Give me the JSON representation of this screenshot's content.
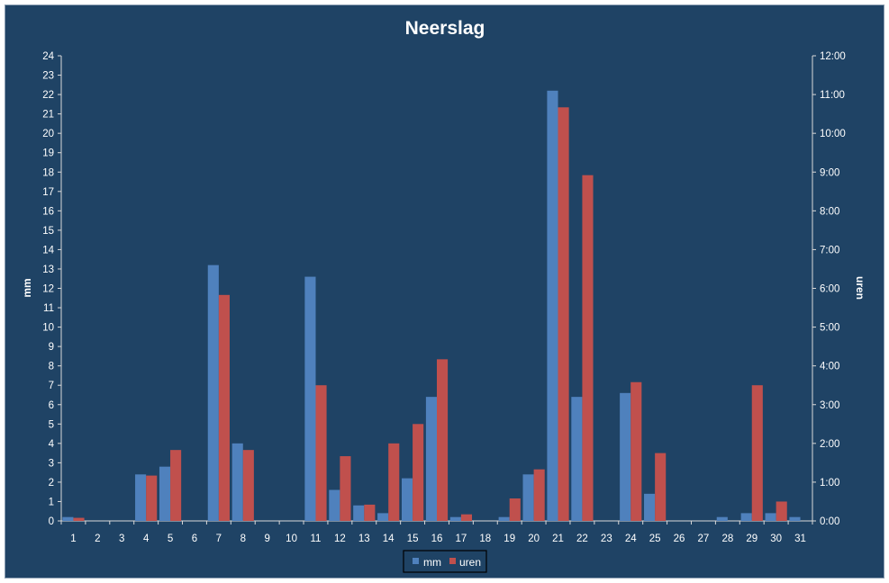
{
  "chart_data": {
    "type": "bar",
    "title": "Neerslag",
    "xlabel": "",
    "ylabel": "mm",
    "y2label": "uren",
    "categories": [
      "1",
      "2",
      "3",
      "4",
      "5",
      "6",
      "7",
      "8",
      "9",
      "10",
      "11",
      "12",
      "13",
      "14",
      "15",
      "16",
      "17",
      "18",
      "19",
      "20",
      "21",
      "22",
      "23",
      "24",
      "25",
      "26",
      "27",
      "28",
      "29",
      "30",
      "31"
    ],
    "ylim": [
      0,
      24
    ],
    "y2lim_hours": [
      0,
      12
    ],
    "yticks": [
      "0",
      "1",
      "2",
      "3",
      "4",
      "5",
      "6",
      "7",
      "8",
      "9",
      "10",
      "11",
      "12",
      "13",
      "14",
      "15",
      "16",
      "17",
      "18",
      "19",
      "20",
      "21",
      "22",
      "23",
      "24"
    ],
    "y2ticks": [
      "0:00",
      "1:00",
      "2:00",
      "3:00",
      "4:00",
      "5:00",
      "6:00",
      "7:00",
      "8:00",
      "9:00",
      "10:00",
      "11:00",
      "12:00"
    ],
    "grid": false,
    "legend_position": "bottom",
    "series": [
      {
        "name": "mm",
        "axis": "left",
        "color": "#4f81bd",
        "values": [
          0.2,
          0,
          0,
          2.4,
          2.8,
          0,
          13.2,
          4.0,
          0,
          0,
          12.6,
          1.6,
          0.8,
          0.4,
          2.2,
          6.4,
          0.2,
          0,
          0.2,
          2.4,
          22.2,
          6.4,
          0,
          6.6,
          1.4,
          0,
          0,
          0.2,
          0.4,
          0.4,
          0.2
        ]
      },
      {
        "name": "uren",
        "axis": "right",
        "color": "#c0504d",
        "values_hours": [
          0.08,
          0,
          0,
          1.17,
          1.83,
          0,
          5.83,
          1.83,
          0,
          0,
          3.5,
          1.67,
          0.42,
          2.0,
          2.5,
          4.17,
          0.17,
          0,
          0.58,
          1.33,
          10.67,
          8.92,
          0,
          3.58,
          1.75,
          0,
          0,
          0,
          3.5,
          0.5,
          0
        ]
      }
    ]
  },
  "colors": {
    "background": "#1f4365",
    "mm": "#4f81bd",
    "uren": "#c0504d",
    "axis": "#d9d9d9"
  }
}
